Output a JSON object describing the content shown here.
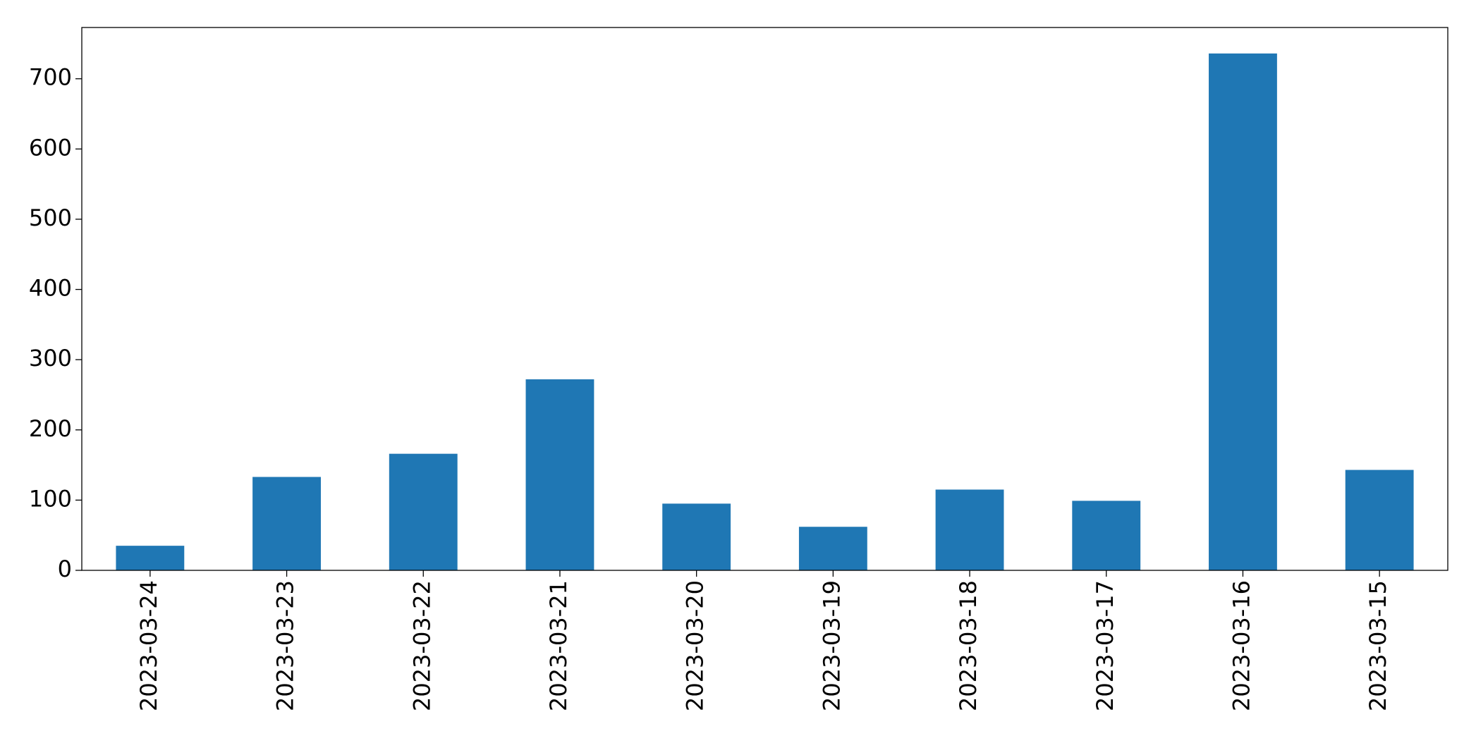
{
  "chart_data": {
    "type": "bar",
    "categories": [
      "2023-03-24",
      "2023-03-23",
      "2023-03-22",
      "2023-03-21",
      "2023-03-20",
      "2023-03-19",
      "2023-03-18",
      "2023-03-17",
      "2023-03-16",
      "2023-03-15"
    ],
    "values": [
      35,
      133,
      166,
      272,
      95,
      62,
      115,
      99,
      736,
      143
    ],
    "color": "#1f77b4",
    "ylim": [
      0,
      773
    ],
    "yticks": [
      0,
      100,
      200,
      300,
      400,
      500,
      600,
      700
    ],
    "grid": false
  }
}
